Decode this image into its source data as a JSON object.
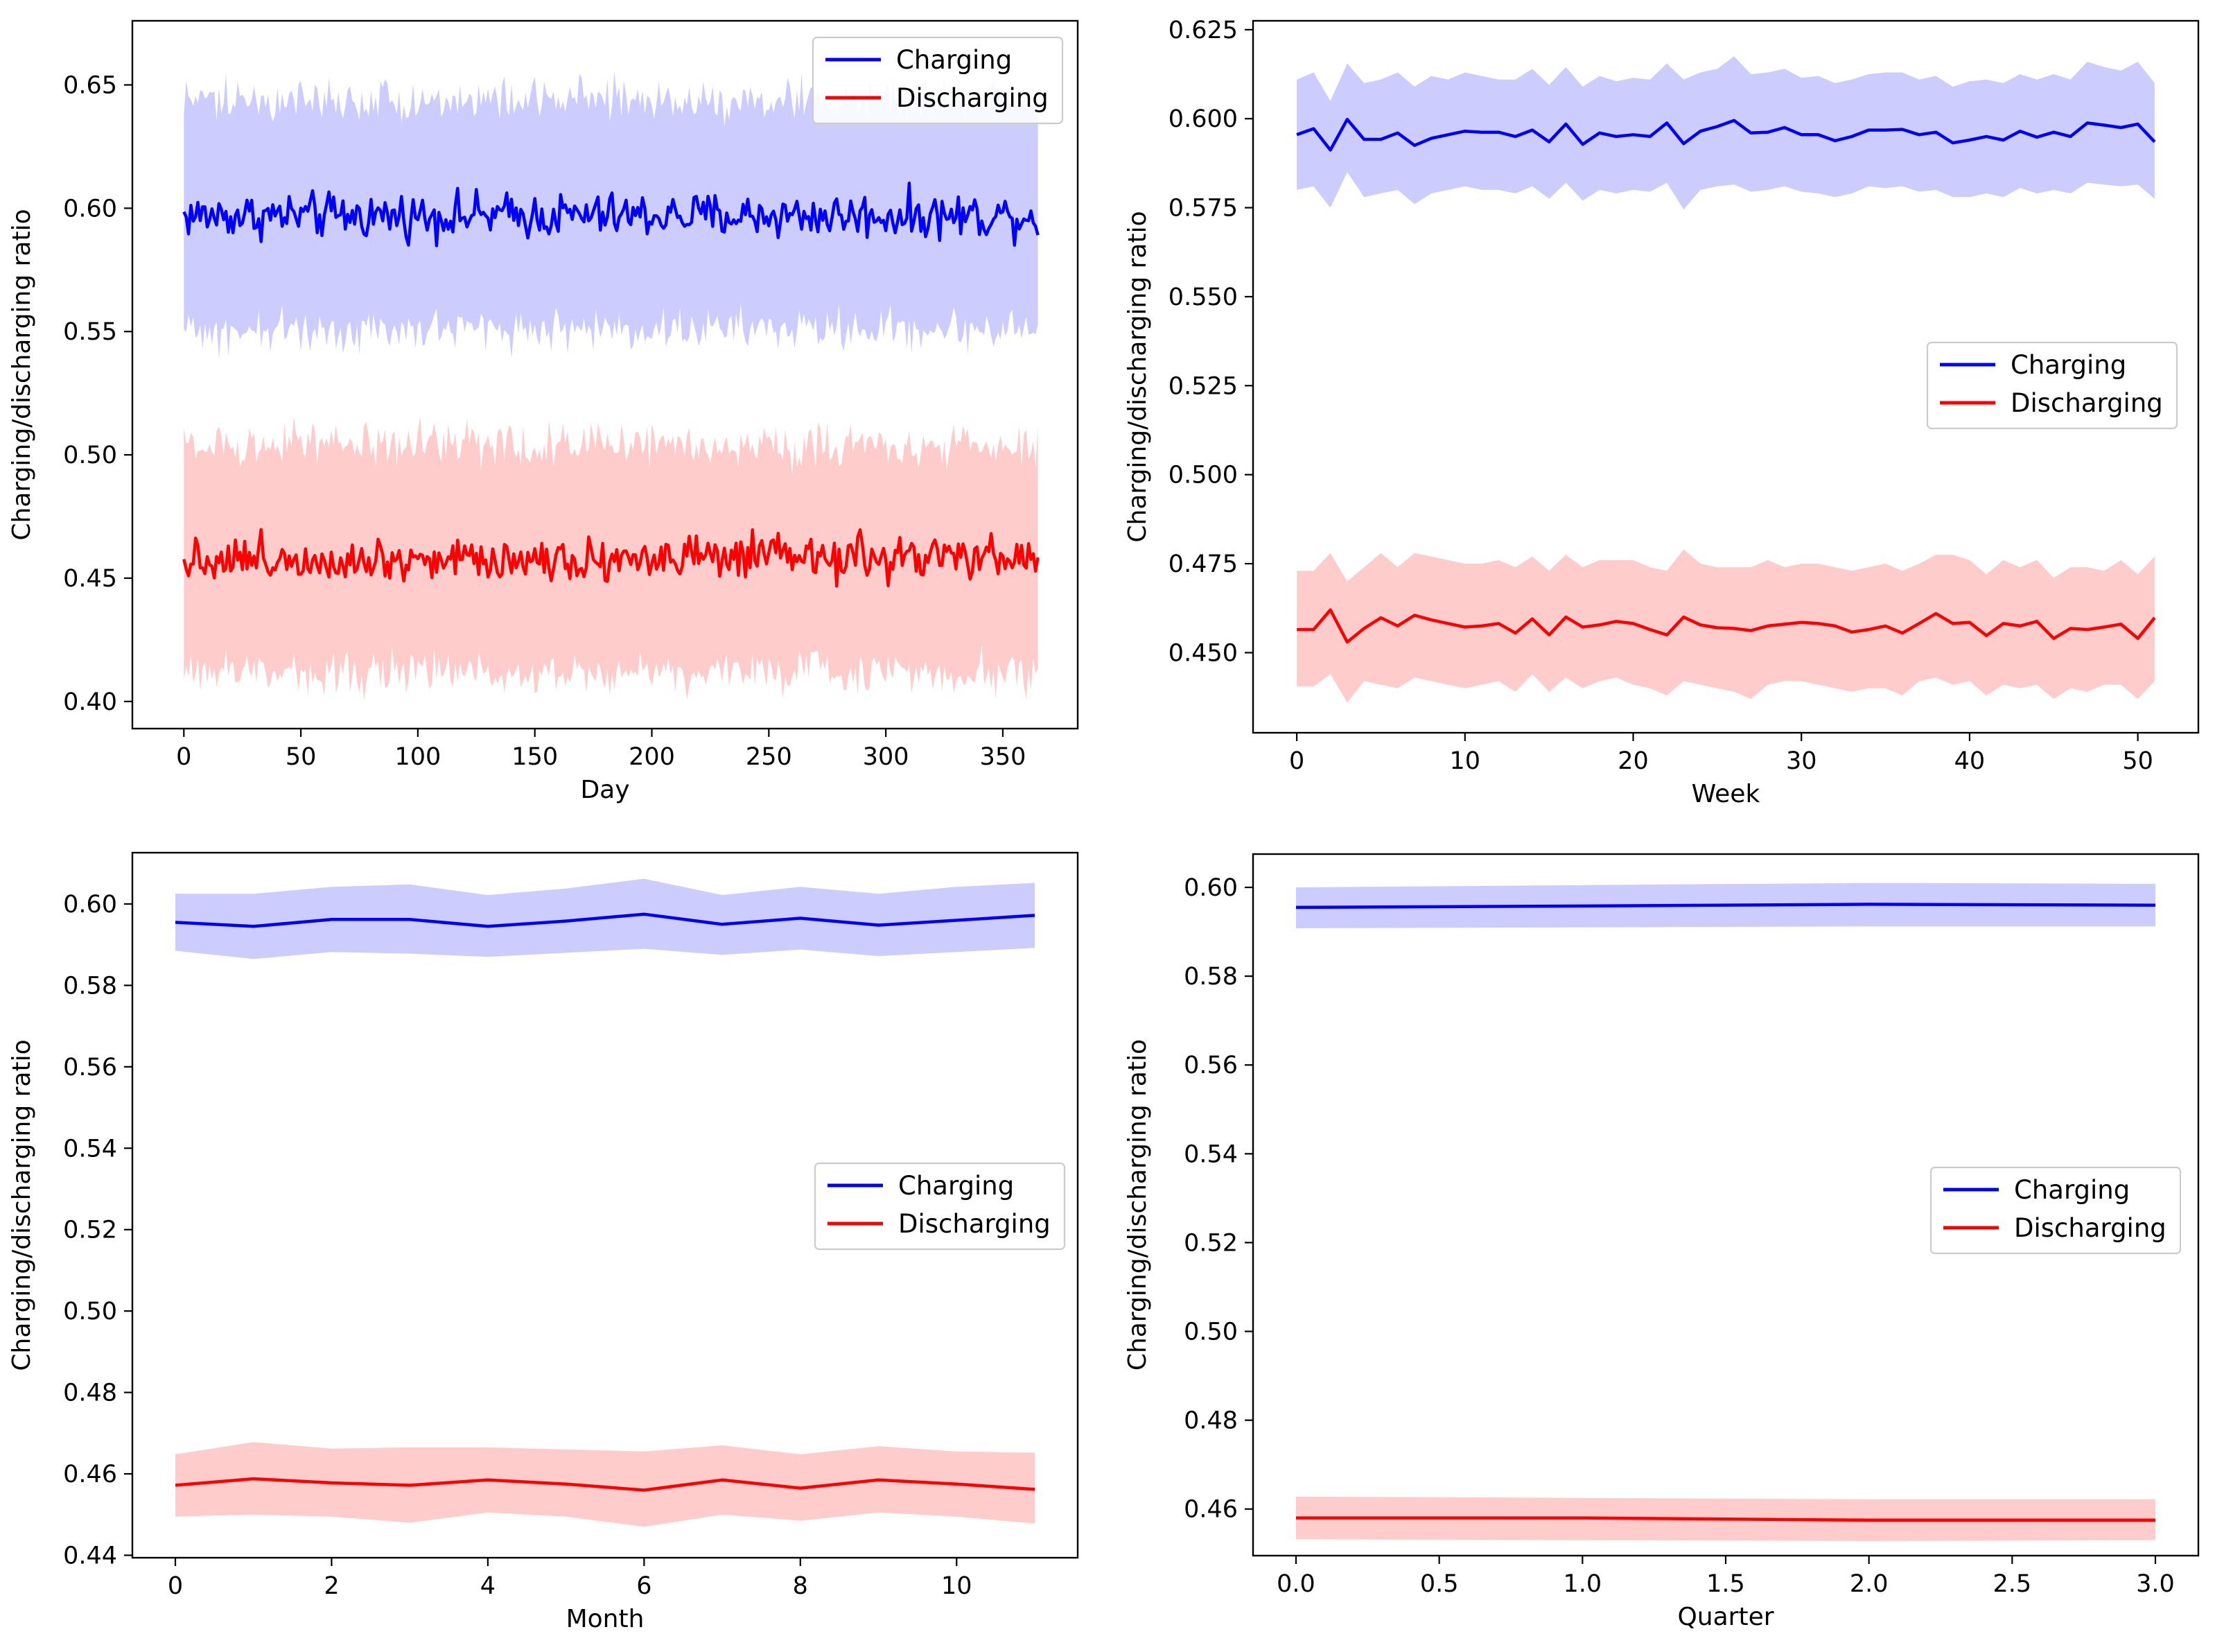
{
  "chart_data": [
    {
      "type": "line",
      "title": "",
      "xlabel": "Day",
      "ylabel": "Charging/discharging ratio",
      "xlim": [
        -22,
        382
      ],
      "ylim": [
        0.389,
        0.676
      ],
      "xticks": [
        0,
        50,
        100,
        150,
        200,
        250,
        300,
        350
      ],
      "yticks": [
        0.4,
        0.45,
        0.5,
        0.55,
        0.6,
        0.65
      ],
      "xtick_labels": [
        "0",
        "50",
        "100",
        "150",
        "200",
        "250",
        "300",
        "350"
      ],
      "ytick_labels": [
        "0.40",
        "0.45",
        "0.50",
        "0.55",
        "0.60",
        "0.65"
      ],
      "legend_position": "upper-right",
      "n_points": 366,
      "series": [
        {
          "name": "Charging",
          "color": "#0000ff",
          "band_color": "#ccccff",
          "mean": 0.597,
          "noise": 0.0045,
          "band_lower": 0.551,
          "band_upper": 0.644,
          "band_noise": 0.0045
        },
        {
          "name": "Discharging",
          "color": "#ff0000",
          "band_color": "#ffcccc",
          "mean": 0.458,
          "noise": 0.0045,
          "band_lower": 0.412,
          "band_upper": 0.504,
          "band_noise": 0.0045
        }
      ]
    },
    {
      "type": "line",
      "title": "",
      "xlabel": "Week",
      "ylabel": "Charging/discharging ratio",
      "xlim": [
        -2.6,
        53.6
      ],
      "ylim": [
        0.4275,
        0.6275
      ],
      "xticks": [
        0,
        10,
        20,
        30,
        40,
        50
      ],
      "yticks": [
        0.45,
        0.475,
        0.5,
        0.525,
        0.55,
        0.575,
        0.6,
        0.625
      ],
      "xtick_labels": [
        "0",
        "10",
        "20",
        "30",
        "40",
        "50"
      ],
      "ytick_labels": [
        "0.450",
        "0.475",
        "0.500",
        "0.525",
        "0.550",
        "0.575",
        "0.600",
        "0.625"
      ],
      "legend_position": "center-right",
      "x": [
        0,
        1,
        2,
        3,
        4,
        5,
        6,
        7,
        8,
        9,
        10,
        11,
        12,
        13,
        14,
        15,
        16,
        17,
        18,
        19,
        20,
        21,
        22,
        23,
        24,
        25,
        26,
        27,
        28,
        29,
        30,
        31,
        32,
        33,
        34,
        35,
        36,
        37,
        38,
        39,
        40,
        41,
        42,
        43,
        44,
        45,
        46,
        47,
        48,
        49,
        50,
        51
      ],
      "series": [
        {
          "name": "Charging",
          "color": "#0000ff",
          "band_color": "#ccccff",
          "values": [
            0.5955,
            0.5972,
            0.5912,
            0.5998,
            0.5942,
            0.5942,
            0.596,
            0.5925,
            0.5945,
            0.5955,
            0.5965,
            0.5962,
            0.5962,
            0.595,
            0.5968,
            0.5935,
            0.5985,
            0.5928,
            0.596,
            0.595,
            0.5955,
            0.595,
            0.5988,
            0.593,
            0.5965,
            0.5978,
            0.5995,
            0.596,
            0.5962,
            0.5975,
            0.5955,
            0.5955,
            0.5938,
            0.595,
            0.5968,
            0.5968,
            0.597,
            0.5955,
            0.5962,
            0.5932,
            0.594,
            0.595,
            0.594,
            0.5965,
            0.5948,
            0.5962,
            0.595,
            0.5988,
            0.5982,
            0.5975,
            0.5985,
            0.5935
          ],
          "lower": [
            0.58,
            0.581,
            0.575,
            0.585,
            0.578,
            0.579,
            0.58,
            0.576,
            0.579,
            0.58,
            0.581,
            0.58,
            0.58,
            0.579,
            0.581,
            0.5775,
            0.582,
            0.577,
            0.58,
            0.579,
            0.58,
            0.5795,
            0.582,
            0.5745,
            0.58,
            0.581,
            0.5815,
            0.5795,
            0.58,
            0.581,
            0.5795,
            0.579,
            0.578,
            0.579,
            0.581,
            0.5805,
            0.581,
            0.5795,
            0.58,
            0.578,
            0.578,
            0.579,
            0.578,
            0.5805,
            0.579,
            0.58,
            0.579,
            0.582,
            0.5815,
            0.581,
            0.5815,
            0.5775
          ],
          "upper": [
            0.611,
            0.613,
            0.605,
            0.6155,
            0.61,
            0.611,
            0.613,
            0.609,
            0.612,
            0.611,
            0.613,
            0.612,
            0.611,
            0.611,
            0.614,
            0.6095,
            0.6145,
            0.609,
            0.612,
            0.6105,
            0.6115,
            0.611,
            0.6155,
            0.611,
            0.613,
            0.614,
            0.6175,
            0.6125,
            0.613,
            0.614,
            0.6115,
            0.612,
            0.61,
            0.611,
            0.6125,
            0.613,
            0.613,
            0.611,
            0.612,
            0.609,
            0.6105,
            0.611,
            0.61,
            0.6125,
            0.611,
            0.6125,
            0.611,
            0.616,
            0.6145,
            0.6135,
            0.616,
            0.61
          ]
        },
        {
          "name": "Discharging",
          "color": "#ff0000",
          "band_color": "#ffcccc",
          "values": [
            0.4565,
            0.4565,
            0.462,
            0.453,
            0.4568,
            0.4598,
            0.4575,
            0.4605,
            0.4592,
            0.4582,
            0.4572,
            0.4575,
            0.4582,
            0.4555,
            0.4595,
            0.455,
            0.46,
            0.4572,
            0.4578,
            0.4588,
            0.4582,
            0.4565,
            0.455,
            0.46,
            0.4578,
            0.457,
            0.4568,
            0.4562,
            0.4575,
            0.458,
            0.4585,
            0.4582,
            0.4575,
            0.4558,
            0.4565,
            0.4575,
            0.4555,
            0.4582,
            0.461,
            0.4582,
            0.4585,
            0.4548,
            0.4582,
            0.4575,
            0.4588,
            0.454,
            0.4568,
            0.4565,
            0.4572,
            0.458,
            0.454,
            0.4598
          ],
          "lower": [
            0.4405,
            0.4405,
            0.444,
            0.436,
            0.442,
            0.441,
            0.44,
            0.443,
            0.442,
            0.441,
            0.44,
            0.441,
            0.442,
            0.439,
            0.444,
            0.439,
            0.443,
            0.44,
            0.442,
            0.443,
            0.441,
            0.44,
            0.438,
            0.442,
            0.441,
            0.44,
            0.439,
            0.437,
            0.441,
            0.442,
            0.442,
            0.441,
            0.44,
            0.439,
            0.44,
            0.44,
            0.438,
            0.442,
            0.443,
            0.441,
            0.442,
            0.438,
            0.441,
            0.44,
            0.441,
            0.437,
            0.44,
            0.439,
            0.441,
            0.441,
            0.437,
            0.442
          ],
          "upper": [
            0.473,
            0.473,
            0.478,
            0.47,
            0.474,
            0.478,
            0.474,
            0.478,
            0.477,
            0.476,
            0.475,
            0.475,
            0.476,
            0.474,
            0.477,
            0.473,
            0.4775,
            0.474,
            0.476,
            0.476,
            0.476,
            0.474,
            0.473,
            0.479,
            0.475,
            0.474,
            0.474,
            0.474,
            0.476,
            0.474,
            0.475,
            0.475,
            0.474,
            0.473,
            0.474,
            0.475,
            0.473,
            0.475,
            0.4775,
            0.4775,
            0.476,
            0.472,
            0.476,
            0.474,
            0.476,
            0.471,
            0.474,
            0.474,
            0.473,
            0.476,
            0.472,
            0.477
          ]
        }
      ]
    },
    {
      "type": "line",
      "title": "",
      "xlabel": "Month",
      "ylabel": "Charging/discharging ratio",
      "xlim": [
        -0.55,
        11.55
      ],
      "ylim": [
        0.4394,
        0.6126
      ],
      "xticks": [
        0,
        2,
        4,
        6,
        8,
        10
      ],
      "yticks": [
        0.44,
        0.46,
        0.48,
        0.5,
        0.52,
        0.54,
        0.56,
        0.58,
        0.6
      ],
      "xtick_labels": [
        "0",
        "2",
        "4",
        "6",
        "8",
        "10"
      ],
      "ytick_labels": [
        "0.44",
        "0.46",
        "0.48",
        "0.50",
        "0.52",
        "0.54",
        "0.56",
        "0.58",
        "0.60"
      ],
      "legend_position": "center-right",
      "x": [
        0,
        1,
        2,
        3,
        4,
        5,
        6,
        7,
        8,
        9,
        10,
        11
      ],
      "series": [
        {
          "name": "Charging",
          "color": "#0000ff",
          "band_color": "#ccccff",
          "values": [
            0.5955,
            0.5945,
            0.5962,
            0.5962,
            0.5945,
            0.5958,
            0.5975,
            0.595,
            0.5965,
            0.5948,
            0.596,
            0.5972
          ],
          "lower": [
            0.5885,
            0.5865,
            0.5882,
            0.5878,
            0.587,
            0.588,
            0.589,
            0.5875,
            0.5888,
            0.5872,
            0.5882,
            0.5892
          ],
          "upper": [
            0.6025,
            0.6025,
            0.6042,
            0.6048,
            0.6022,
            0.6038,
            0.6062,
            0.6022,
            0.6042,
            0.6025,
            0.6042,
            0.6052
          ]
        },
        {
          "name": "Discharging",
          "color": "#ff0000",
          "band_color": "#ffcccc",
          "values": [
            0.4572,
            0.4588,
            0.4578,
            0.4572,
            0.4585,
            0.4575,
            0.456,
            0.4585,
            0.4565,
            0.4585,
            0.4575,
            0.4562
          ],
          "lower": [
            0.4495,
            0.45,
            0.4495,
            0.448,
            0.4505,
            0.4495,
            0.447,
            0.45,
            0.4485,
            0.4505,
            0.4495,
            0.4478
          ],
          "upper": [
            0.4648,
            0.4678,
            0.4662,
            0.4665,
            0.4665,
            0.466,
            0.4655,
            0.467,
            0.4648,
            0.4668,
            0.4655,
            0.4652
          ]
        }
      ]
    },
    {
      "type": "line",
      "title": "",
      "xlabel": "Quarter",
      "ylabel": "Charging/discharging ratio",
      "xlim": [
        -0.15,
        3.15
      ],
      "ylim": [
        0.4495,
        0.6075
      ],
      "xticks": [
        0,
        0.5,
        1,
        1.5,
        2,
        2.5,
        3
      ],
      "yticks": [
        0.46,
        0.48,
        0.5,
        0.52,
        0.54,
        0.56,
        0.58,
        0.6
      ],
      "xtick_labels": [
        "0.0",
        "0.5",
        "1.0",
        "1.5",
        "2.0",
        "2.5",
        "3.0"
      ],
      "ytick_labels": [
        "0.46",
        "0.48",
        "0.50",
        "0.52",
        "0.54",
        "0.56",
        "0.58",
        "0.60"
      ],
      "legend_position": "center-right",
      "x": [
        0,
        1,
        2,
        3
      ],
      "series": [
        {
          "name": "Charging",
          "color": "#0000ff",
          "band_color": "#ccccff",
          "values": [
            0.5955,
            0.5958,
            0.5962,
            0.596
          ],
          "lower": [
            0.5908,
            0.591,
            0.5912,
            0.5912
          ],
          "upper": [
            0.6,
            0.6005,
            0.601,
            0.6008
          ]
        },
        {
          "name": "Discharging",
          "color": "#ff0000",
          "band_color": "#ffcccc",
          "values": [
            0.458,
            0.458,
            0.4575,
            0.4575
          ],
          "lower": [
            0.4532,
            0.453,
            0.4528,
            0.453
          ],
          "upper": [
            0.4628,
            0.4625,
            0.4622,
            0.4622
          ]
        }
      ]
    }
  ]
}
